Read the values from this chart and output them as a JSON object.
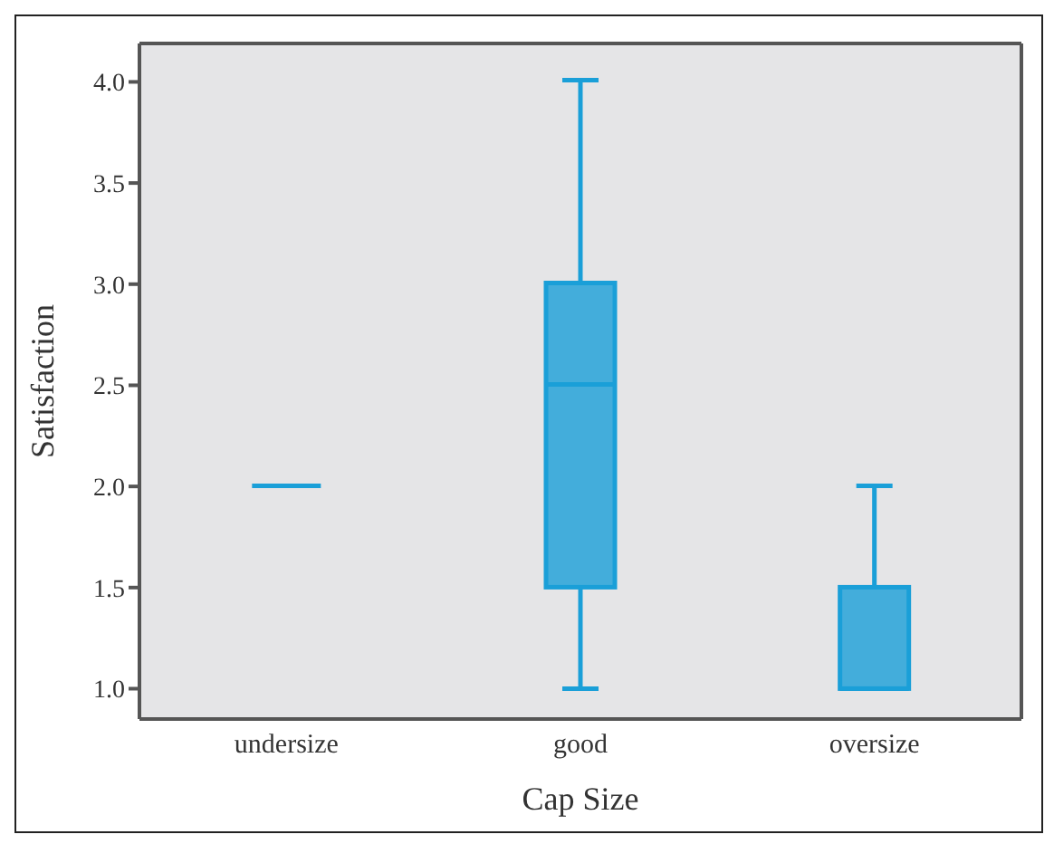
{
  "chart_data": {
    "type": "box",
    "xlabel": "Cap Size",
    "ylabel": "Satisfaction",
    "categories": [
      "undersize",
      "good",
      "oversize"
    ],
    "boxes": [
      {
        "low": 2,
        "q1": 2,
        "median": 2,
        "q3": 2,
        "high": 2
      },
      {
        "low": 1,
        "q1": 1.5,
        "median": 2.5,
        "q3": 3,
        "high": 4
      },
      {
        "low": 1,
        "q1": 1,
        "median": 1,
        "q3": 1.5,
        "high": 2
      }
    ],
    "color": "#1a9fd8",
    "ylim": [
      0.85,
      4.19
    ],
    "yticks": [
      {
        "value": 1,
        "label": "1.0"
      },
      {
        "value": 1.5,
        "label": "1.5"
      },
      {
        "value": 2,
        "label": "2.0"
      },
      {
        "value": 2.5,
        "label": "2.5"
      },
      {
        "value": 3,
        "label": "3.0"
      },
      {
        "value": 3.5,
        "label": "3.5"
      },
      {
        "value": 4,
        "label": "4.0"
      }
    ],
    "grid": false
  }
}
